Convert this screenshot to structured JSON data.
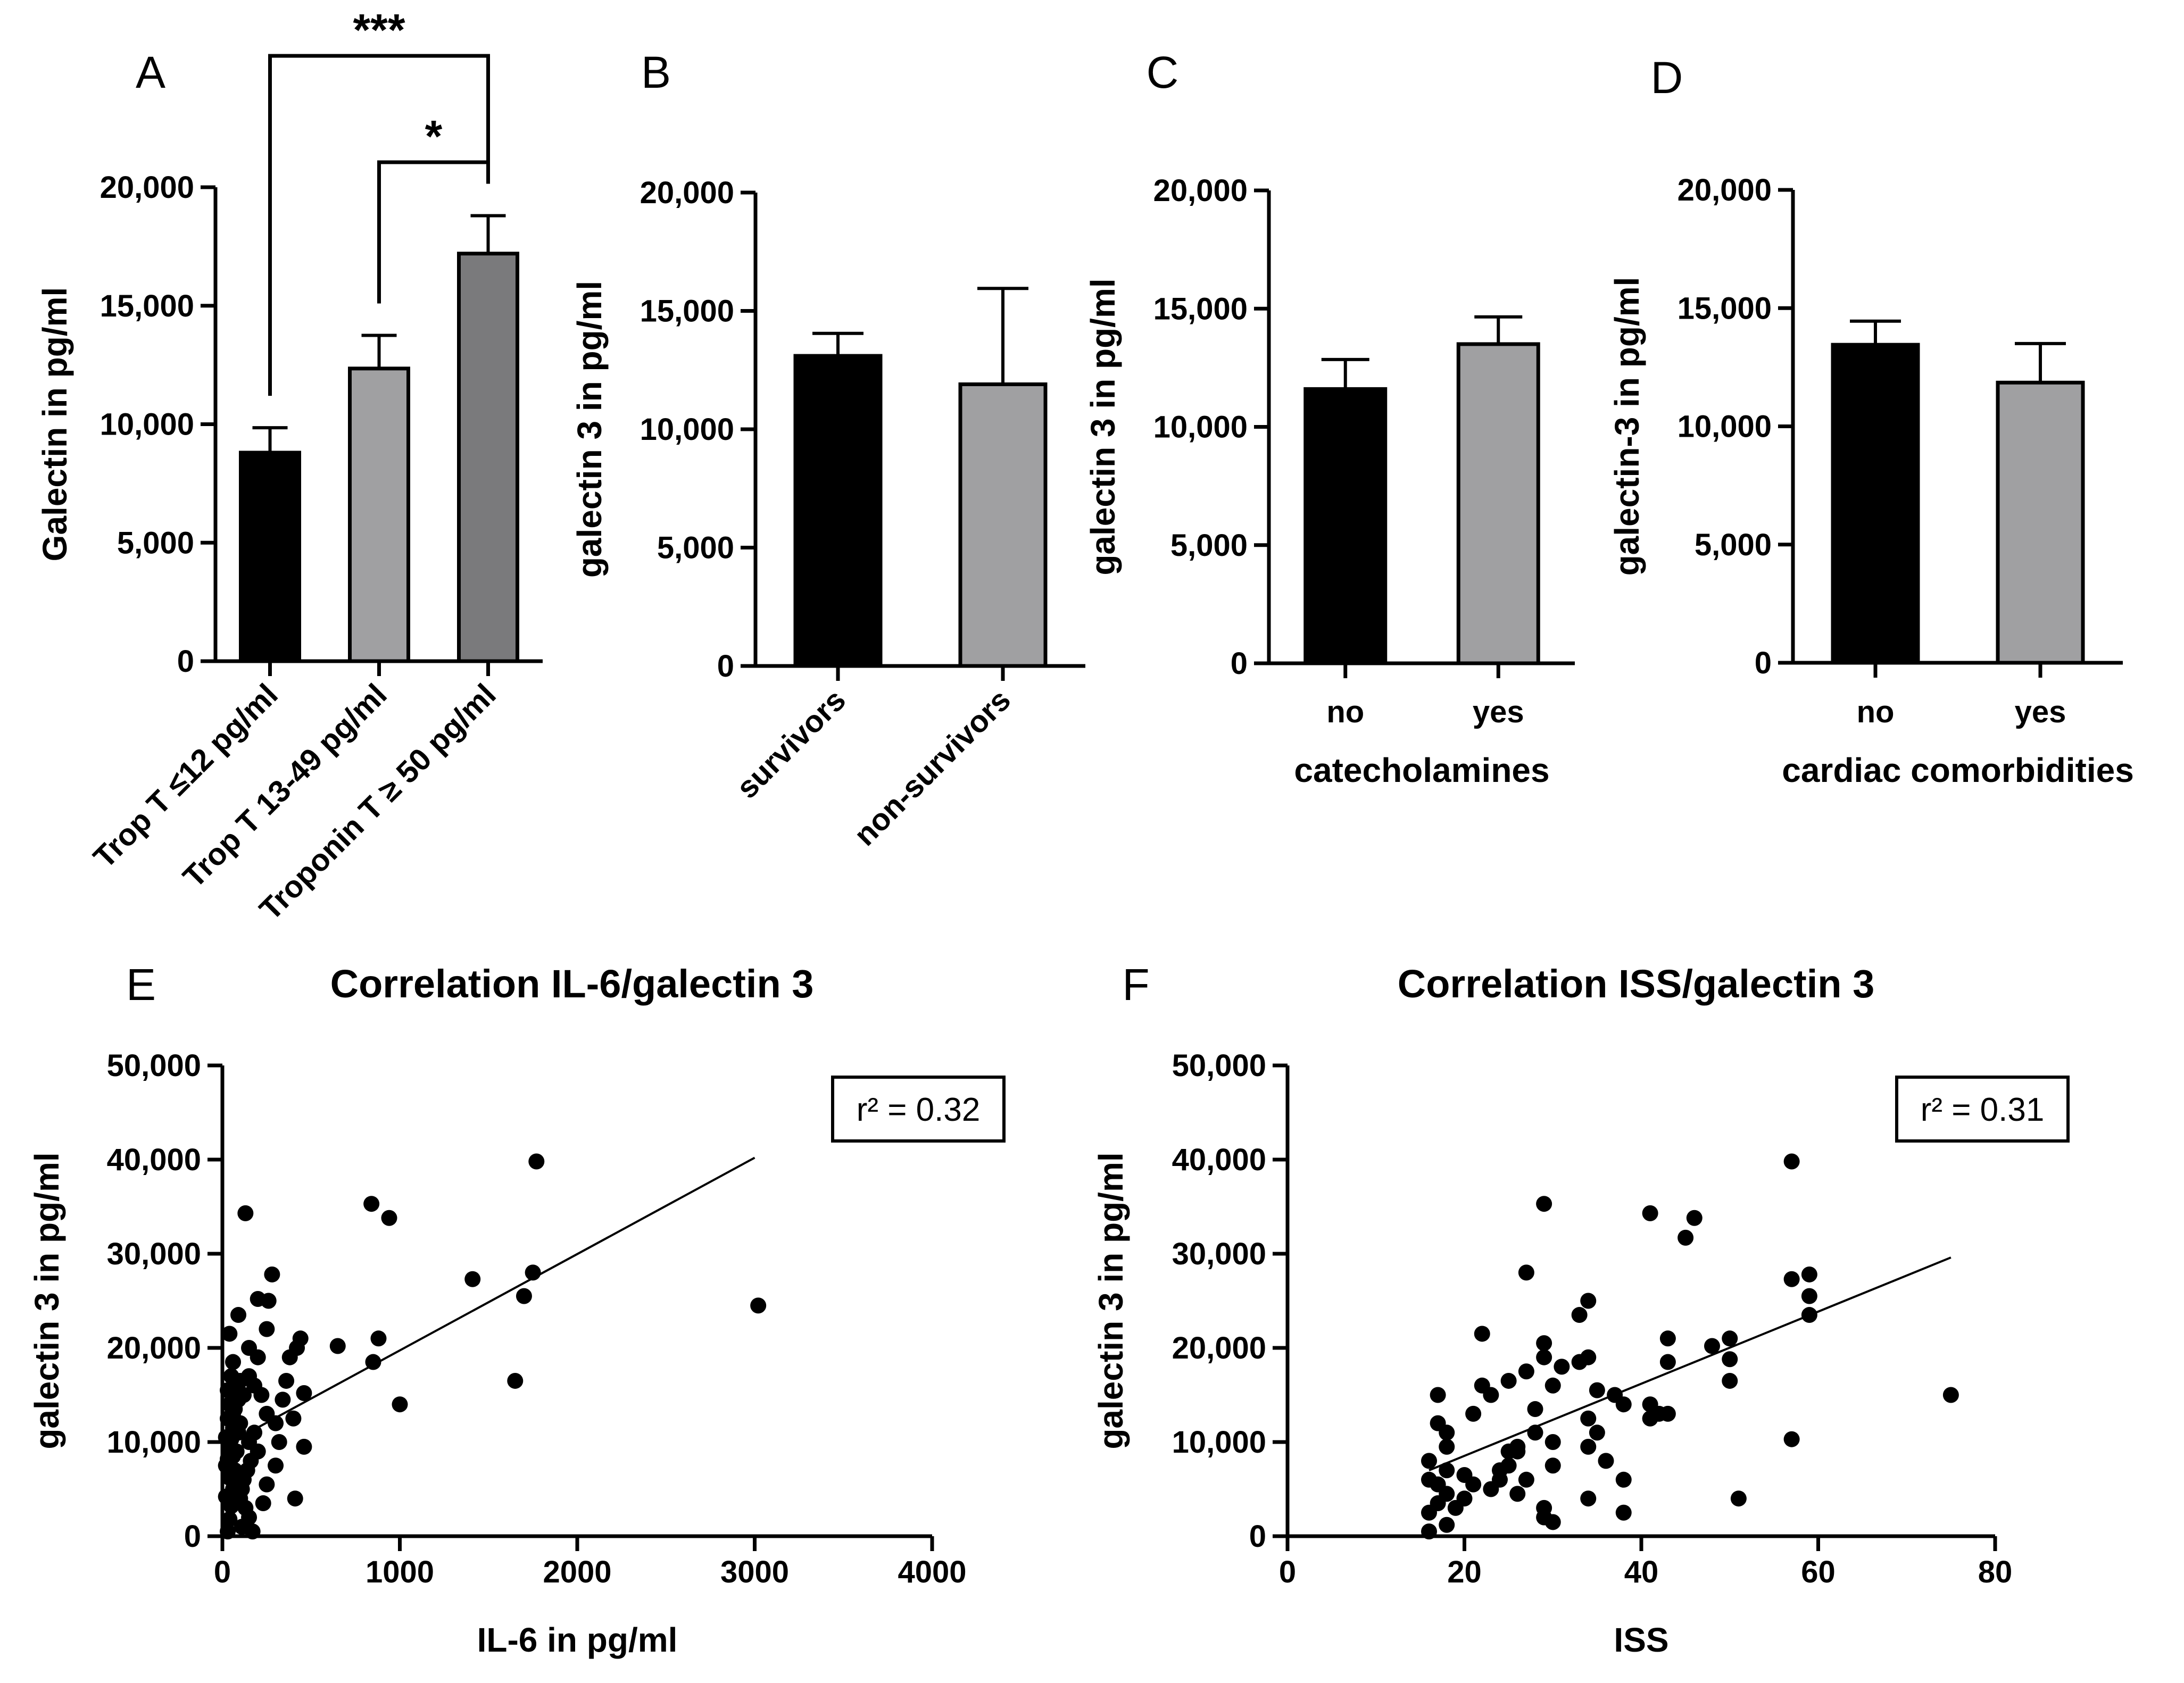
{
  "chart_data": [
    {
      "id": "A",
      "panel_letter": "A",
      "type": "bar",
      "title": "",
      "xlabel": "",
      "ylabel": "Galectin in pg/ml",
      "ylim": [
        0,
        20000
      ],
      "yticks": [
        0,
        5000,
        10000,
        15000,
        20000
      ],
      "ytick_labels": [
        "0",
        "5,000",
        "10,000",
        "15,000",
        "20,000"
      ],
      "categories": [
        "Trop T ≤12 pg/ml",
        "Trop T 13-49 pg/ml",
        "Troponin T ≥ 50 pg/ml"
      ],
      "values": [
        8800,
        12350,
        17200
      ],
      "errors": [
        1050,
        1400,
        1600
      ],
      "colors": [
        "#000000",
        "#a0a0a2",
        "#7a7a7c"
      ],
      "significance": [
        {
          "from": 0,
          "to": 2,
          "label": "***",
          "level": 2
        },
        {
          "from": 1,
          "to": 2,
          "label": "*",
          "level": 1
        }
      ]
    },
    {
      "id": "B",
      "panel_letter": "B",
      "type": "bar",
      "title": "",
      "xlabel": "",
      "ylabel": "galectin 3 in pg/ml",
      "ylim": [
        0,
        20000
      ],
      "yticks": [
        0,
        5000,
        10000,
        15000,
        20000
      ],
      "ytick_labels": [
        "0",
        "5,000",
        "10,000",
        "15,000",
        "20,000"
      ],
      "categories": [
        "survivors",
        "non-survivors"
      ],
      "values": [
        13100,
        11900
      ],
      "errors": [
        950,
        4050
      ],
      "colors": [
        "#000000",
        "#a0a0a2"
      ]
    },
    {
      "id": "C",
      "panel_letter": "C",
      "type": "bar",
      "title": "",
      "xlabel": "catecholamines",
      "ylabel": "galectin 3 in pg/ml",
      "ylim": [
        0,
        20000
      ],
      "yticks": [
        0,
        5000,
        10000,
        15000,
        20000
      ],
      "ytick_labels": [
        "0",
        "5,000",
        "10,000",
        "15,000",
        "20,000"
      ],
      "categories": [
        "no",
        "yes"
      ],
      "values": [
        11600,
        13500
      ],
      "errors": [
        1250,
        1150
      ],
      "colors": [
        "#000000",
        "#a0a0a2"
      ]
    },
    {
      "id": "D",
      "panel_letter": "D",
      "type": "bar",
      "title": "",
      "xlabel": "cardiac comorbidities",
      "ylabel": "galectin-3 in pg/ml",
      "ylim": [
        0,
        20000
      ],
      "yticks": [
        0,
        5000,
        10000,
        15000,
        20000
      ],
      "ytick_labels": [
        "0",
        "5,000",
        "10,000",
        "15,000",
        "20,000"
      ],
      "categories": [
        "no",
        "yes"
      ],
      "values": [
        13450,
        11850
      ],
      "errors": [
        1000,
        1650
      ],
      "colors": [
        "#000000",
        "#a0a0a2"
      ]
    },
    {
      "id": "E",
      "panel_letter": "E",
      "type": "scatter",
      "title": "Correlation IL-6/galectin 3",
      "xlabel": "IL-6 in pg/ml",
      "ylabel": "galectin 3 in pg/ml",
      "xlim": [
        0,
        4000
      ],
      "ylim": [
        0,
        50000
      ],
      "xticks": [
        0,
        1000,
        2000,
        3000,
        4000
      ],
      "xtick_labels": [
        "0",
        "1000",
        "2000",
        "3000",
        "4000"
      ],
      "yticks": [
        0,
        10000,
        20000,
        30000,
        40000,
        50000
      ],
      "ytick_labels": [
        "0",
        "10,000",
        "20,000",
        "30,000",
        "40,000",
        "50,000"
      ],
      "annotation": "r² = 0.32",
      "fit_line": {
        "x": [
          0,
          3000
        ],
        "y": [
          9500,
          40200
        ]
      },
      "points": [
        [
          30,
          500
        ],
        [
          40,
          1800
        ],
        [
          50,
          3200
        ],
        [
          20,
          4200
        ],
        [
          60,
          5000
        ],
        [
          40,
          6200
        ],
        [
          70,
          7000
        ],
        [
          30,
          8200
        ],
        [
          80,
          9000
        ],
        [
          50,
          10300
        ],
        [
          90,
          11000
        ],
        [
          30,
          12500
        ],
        [
          60,
          13000
        ],
        [
          100,
          12000
        ],
        [
          40,
          14000
        ],
        [
          120,
          15000
        ],
        [
          80,
          16000
        ],
        [
          150,
          17000
        ],
        [
          60,
          18500
        ],
        [
          40,
          21500
        ],
        [
          90,
          23500
        ],
        [
          130,
          34300
        ],
        [
          200,
          19000
        ],
        [
          250,
          22000
        ],
        [
          260,
          25000
        ],
        [
          280,
          27800
        ],
        [
          200,
          25200
        ],
        [
          150,
          20000
        ],
        [
          180,
          16000
        ],
        [
          220,
          15000
        ],
        [
          250,
          13000
        ],
        [
          300,
          12000
        ],
        [
          180,
          11000
        ],
        [
          150,
          10000
        ],
        [
          200,
          9000
        ],
        [
          160,
          8000
        ],
        [
          140,
          7000
        ],
        [
          120,
          6000
        ],
        [
          110,
          5000
        ],
        [
          100,
          4000
        ],
        [
          130,
          3000
        ],
        [
          150,
          2000
        ],
        [
          110,
          1000
        ],
        [
          170,
          500
        ],
        [
          230,
          3500
        ],
        [
          250,
          5500
        ],
        [
          300,
          7500
        ],
        [
          320,
          10000
        ],
        [
          340,
          14500
        ],
        [
          360,
          16500
        ],
        [
          380,
          19000
        ],
        [
          420,
          20000
        ],
        [
          440,
          21000
        ],
        [
          460,
          15200
        ],
        [
          400,
          12500
        ],
        [
          460,
          9500
        ],
        [
          410,
          4000
        ],
        [
          650,
          20200
        ],
        [
          850,
          18500
        ],
        [
          880,
          21000
        ],
        [
          840,
          35300
        ],
        [
          940,
          33800
        ],
        [
          1000,
          14000
        ],
        [
          1410,
          27300
        ],
        [
          1650,
          16500
        ],
        [
          1700,
          25500
        ],
        [
          1750,
          28000
        ],
        [
          1770,
          39800
        ],
        [
          3020,
          24500
        ],
        [
          20,
          10500
        ],
        [
          60,
          11500
        ],
        [
          70,
          13500
        ],
        [
          80,
          15500
        ],
        [
          90,
          14500
        ],
        [
          100,
          16500
        ],
        [
          50,
          17000
        ],
        [
          30,
          15500
        ],
        [
          20,
          7500
        ],
        [
          60,
          8500
        ],
        [
          40,
          9500
        ]
      ]
    },
    {
      "id": "F",
      "panel_letter": "F",
      "type": "scatter",
      "title": "Correlation ISS/galectin 3",
      "xlabel": "ISS",
      "ylabel": "galectin 3 in pg/ml",
      "xlim": [
        0,
        80
      ],
      "ylim": [
        0,
        50000
      ],
      "xticks": [
        0,
        20,
        40,
        60,
        80
      ],
      "xtick_labels": [
        "0",
        "20",
        "40",
        "60",
        "80"
      ],
      "yticks": [
        0,
        10000,
        20000,
        30000,
        40000,
        50000
      ],
      "ytick_labels": [
        "0",
        "10,000",
        "20,000",
        "30,000",
        "40,000",
        "50,000"
      ],
      "annotation": "r² = 0.31",
      "fit_line": {
        "x": [
          16,
          75
        ],
        "y": [
          7000,
          29600
        ]
      },
      "points": [
        [
          16,
          500
        ],
        [
          16,
          2500
        ],
        [
          16,
          6000
        ],
        [
          16,
          8000
        ],
        [
          17,
          3500
        ],
        [
          17,
          5500
        ],
        [
          17,
          12000
        ],
        [
          17,
          15000
        ],
        [
          18,
          1200
        ],
        [
          18,
          4500
        ],
        [
          18,
          7000
        ],
        [
          18,
          9500
        ],
        [
          18,
          11000
        ],
        [
          19,
          3000
        ],
        [
          20,
          4000
        ],
        [
          20,
          6500
        ],
        [
          21,
          13000
        ],
        [
          22,
          16000
        ],
        [
          22,
          21500
        ],
        [
          23,
          15000
        ],
        [
          23,
          5000
        ],
        [
          24,
          6000
        ],
        [
          25,
          7500
        ],
        [
          25,
          9000
        ],
        [
          25,
          16500
        ],
        [
          26,
          4500
        ],
        [
          26,
          9500
        ],
        [
          27,
          6000
        ],
        [
          27,
          17500
        ],
        [
          27,
          28000
        ],
        [
          28,
          11000
        ],
        [
          28,
          13500
        ],
        [
          29,
          19000
        ],
        [
          29,
          20500
        ],
        [
          29,
          35300
        ],
        [
          29,
          3000
        ],
        [
          29,
          2000
        ],
        [
          30,
          1500
        ],
        [
          30,
          7500
        ],
        [
          30,
          10000
        ],
        [
          30,
          16000
        ],
        [
          31,
          18000
        ],
        [
          33,
          18500
        ],
        [
          33,
          23500
        ],
        [
          34,
          25000
        ],
        [
          34,
          19000
        ],
        [
          34,
          12500
        ],
        [
          34,
          9500
        ],
        [
          34,
          4000
        ],
        [
          35,
          11000
        ],
        [
          35,
          15500
        ],
        [
          36,
          8000
        ],
        [
          37,
          15000
        ],
        [
          38,
          14000
        ],
        [
          38,
          6000
        ],
        [
          38,
          2500
        ],
        [
          41,
          34300
        ],
        [
          41,
          14000
        ],
        [
          41,
          12500
        ],
        [
          42,
          13000
        ],
        [
          43,
          13000
        ],
        [
          43,
          18500
        ],
        [
          43,
          21000
        ],
        [
          45,
          31700
        ],
        [
          46,
          33800
        ],
        [
          48,
          20200
        ],
        [
          50,
          21000
        ],
        [
          50,
          18800
        ],
        [
          50,
          16500
        ],
        [
          51,
          4000
        ],
        [
          57,
          39800
        ],
        [
          57,
          27300
        ],
        [
          57,
          10300
        ],
        [
          59,
          27800
        ],
        [
          59,
          25500
        ],
        [
          59,
          23500
        ],
        [
          75,
          15000
        ],
        [
          26,
          9000
        ],
        [
          24,
          7000
        ],
        [
          21,
          5500
        ]
      ]
    }
  ]
}
